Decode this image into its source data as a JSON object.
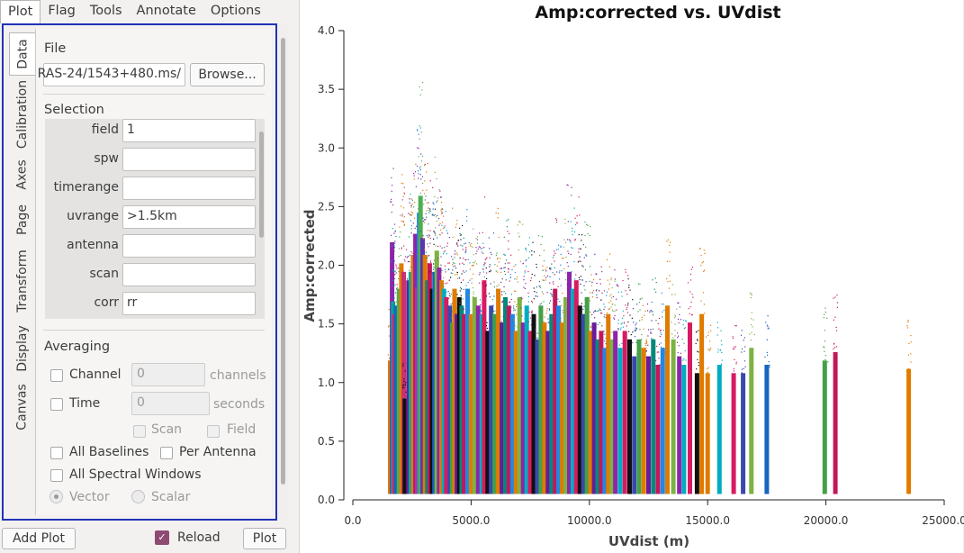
{
  "menu": {
    "plot": "Plot",
    "flag": "Flag",
    "tools": "Tools",
    "annotate": "Annotate",
    "options": "Options"
  },
  "tabs": {
    "data": "Data",
    "calibration": "Calibration",
    "axes": "Axes",
    "page": "Page",
    "transform": "Transform",
    "display": "Display",
    "canvas": "Canvas"
  },
  "file": {
    "header": "File",
    "path": "/RAS-24/1543+480.ms",
    "browse": "Browse..."
  },
  "selection": {
    "header": "Selection",
    "fields": [
      {
        "label": "field",
        "value": "1"
      },
      {
        "label": "spw",
        "value": ""
      },
      {
        "label": "timerange",
        "value": ""
      },
      {
        "label": "uvrange",
        "value": ">1.5km"
      },
      {
        "label": "antenna",
        "value": ""
      },
      {
        "label": "scan",
        "value": ""
      },
      {
        "label": "corr",
        "value": "rr"
      }
    ]
  },
  "averaging": {
    "header": "Averaging",
    "channel": "Channel",
    "channel_value": "0",
    "channel_unit": "channels",
    "time": "Time",
    "time_value": "0",
    "time_unit": "seconds",
    "scan": "Scan",
    "field": "Field",
    "all_baselines": "All Baselines",
    "per_antenna": "Per Antenna",
    "all_spw": "All Spectral Windows",
    "vector": "Vector",
    "scalar": "Scalar"
  },
  "footer": {
    "add_plot": "Add Plot",
    "reload": "Reload",
    "plot": "Plot"
  },
  "colors": {
    "tab_border": "#2232b8",
    "reload_check": "#8e4a73"
  },
  "chart_data": {
    "type": "scatter",
    "title": "Amp:corrected vs. UVdist",
    "xlabel": "UVdist (m)",
    "ylabel": "Amp:corrected",
    "xlim": [
      0,
      25000
    ],
    "ylim": [
      0,
      4.0
    ],
    "x_ticks": [
      "0.0",
      "5000.0",
      "10000.0",
      "15000.0",
      "20000.0",
      "25000.0"
    ],
    "y_ticks": [
      "0.0",
      "0.5",
      "1.0",
      "1.5",
      "2.0",
      "2.5",
      "3.0",
      "3.5",
      "4.0"
    ],
    "bands": [
      {
        "x": 1580,
        "ymax": 1.65,
        "color": "#e07b00"
      },
      {
        "x": 1660,
        "ymax": 3.05,
        "color": "#8e24aa"
      },
      {
        "x": 1700,
        "ymax": 2.35,
        "color": "#00a69c"
      },
      {
        "x": 1760,
        "ymax": 2.2,
        "color": "#e91e63"
      },
      {
        "x": 1830,
        "ymax": 2.3,
        "color": "#1565c0"
      },
      {
        "x": 1950,
        "ymax": 2.5,
        "color": "#4caf50"
      },
      {
        "x": 2050,
        "ymax": 2.8,
        "color": "#e07b00"
      },
      {
        "x": 2150,
        "ymax": 2.7,
        "color": "#c8326e"
      },
      {
        "x": 2200,
        "ymax": 1.2,
        "color": "#111111"
      },
      {
        "x": 2350,
        "ymax": 2.6,
        "color": "#6a1b9a"
      },
      {
        "x": 2450,
        "ymax": 2.7,
        "color": "#00a69c"
      },
      {
        "x": 2550,
        "ymax": 2.9,
        "color": "#e07b00"
      },
      {
        "x": 2650,
        "ymax": 3.15,
        "color": "#8e24aa"
      },
      {
        "x": 2720,
        "ymax": 2.5,
        "color": "#e91e63"
      },
      {
        "x": 2800,
        "ymax": 3.4,
        "color": "#1e88e5"
      },
      {
        "x": 2860,
        "ymax": 3.6,
        "color": "#4caf50"
      },
      {
        "x": 2950,
        "ymax": 3.1,
        "color": "#5e35b1"
      },
      {
        "x": 3050,
        "ymax": 2.9,
        "color": "#e07b00"
      },
      {
        "x": 3150,
        "ymax": 2.6,
        "color": "#00897b"
      },
      {
        "x": 3250,
        "ymax": 2.8,
        "color": "#c2185b"
      },
      {
        "x": 3350,
        "ymax": 2.5,
        "color": "#111111"
      },
      {
        "x": 3450,
        "ymax": 2.7,
        "color": "#1565c0"
      },
      {
        "x": 3550,
        "ymax": 2.95,
        "color": "#7cb342"
      },
      {
        "x": 3650,
        "ymax": 2.75,
        "color": "#8e24aa"
      },
      {
        "x": 3750,
        "ymax": 2.6,
        "color": "#e07b00"
      },
      {
        "x": 3850,
        "ymax": 2.5,
        "color": "#00acc1"
      },
      {
        "x": 3950,
        "ymax": 2.4,
        "color": "#d81b60"
      },
      {
        "x": 4100,
        "ymax": 2.3,
        "color": "#3949ab"
      },
      {
        "x": 4200,
        "ymax": 2.1,
        "color": "#43a047"
      },
      {
        "x": 4300,
        "ymax": 2.5,
        "color": "#e07b00"
      },
      {
        "x": 4400,
        "ymax": 2.2,
        "color": "#6a1b9a"
      },
      {
        "x": 4500,
        "ymax": 2.4,
        "color": "#111111"
      },
      {
        "x": 4600,
        "ymax": 2.3,
        "color": "#00897b"
      },
      {
        "x": 4700,
        "ymax": 2.2,
        "color": "#c2185b"
      },
      {
        "x": 4850,
        "ymax": 2.5,
        "color": "#1e88e5"
      },
      {
        "x": 5000,
        "ymax": 2.2,
        "color": "#e07b00"
      },
      {
        "x": 5150,
        "ymax": 2.4,
        "color": "#7cb342"
      },
      {
        "x": 5300,
        "ymax": 2.3,
        "color": "#8e24aa"
      },
      {
        "x": 5450,
        "ymax": 2.2,
        "color": "#00acc1"
      },
      {
        "x": 5550,
        "ymax": 2.6,
        "color": "#d81b60"
      },
      {
        "x": 5700,
        "ymax": 2.0,
        "color": "#111111"
      },
      {
        "x": 5850,
        "ymax": 2.3,
        "color": "#3949ab"
      },
      {
        "x": 6000,
        "ymax": 2.2,
        "color": "#43a047"
      },
      {
        "x": 6150,
        "ymax": 2.5,
        "color": "#e07b00"
      },
      {
        "x": 6300,
        "ymax": 2.1,
        "color": "#6a1b9a"
      },
      {
        "x": 6450,
        "ymax": 2.4,
        "color": "#00897b"
      },
      {
        "x": 6600,
        "ymax": 2.3,
        "color": "#c2185b"
      },
      {
        "x": 6750,
        "ymax": 2.2,
        "color": "#1e88e5"
      },
      {
        "x": 6900,
        "ymax": 2.0,
        "color": "#e07b00"
      },
      {
        "x": 7050,
        "ymax": 2.4,
        "color": "#7cb342"
      },
      {
        "x": 7200,
        "ymax": 2.1,
        "color": "#8e24aa"
      },
      {
        "x": 7350,
        "ymax": 2.3,
        "color": "#00acc1"
      },
      {
        "x": 7500,
        "ymax": 2.0,
        "color": "#d81b60"
      },
      {
        "x": 7650,
        "ymax": 2.2,
        "color": "#111111"
      },
      {
        "x": 7800,
        "ymax": 1.9,
        "color": "#3949ab"
      },
      {
        "x": 7950,
        "ymax": 2.3,
        "color": "#43a047"
      },
      {
        "x": 8100,
        "ymax": 2.1,
        "color": "#e07b00"
      },
      {
        "x": 8250,
        "ymax": 2.0,
        "color": "#6a1b9a"
      },
      {
        "x": 8400,
        "ymax": 2.2,
        "color": "#00897b"
      },
      {
        "x": 8550,
        "ymax": 2.5,
        "color": "#c2185b"
      },
      {
        "x": 8700,
        "ymax": 2.3,
        "color": "#1e88e5"
      },
      {
        "x": 8850,
        "ymax": 2.1,
        "color": "#e07b00"
      },
      {
        "x": 9000,
        "ymax": 2.4,
        "color": "#7cb342"
      },
      {
        "x": 9150,
        "ymax": 2.7,
        "color": "#8e24aa"
      },
      {
        "x": 9300,
        "ymax": 2.5,
        "color": "#00acc1"
      },
      {
        "x": 9450,
        "ymax": 2.6,
        "color": "#d81b60"
      },
      {
        "x": 9600,
        "ymax": 2.3,
        "color": "#111111"
      },
      {
        "x": 9750,
        "ymax": 2.2,
        "color": "#3949ab"
      },
      {
        "x": 9900,
        "ymax": 2.4,
        "color": "#43a047"
      },
      {
        "x": 10050,
        "ymax": 2.0,
        "color": "#e07b00"
      },
      {
        "x": 10200,
        "ymax": 2.1,
        "color": "#6a1b9a"
      },
      {
        "x": 10350,
        "ymax": 1.9,
        "color": "#00897b"
      },
      {
        "x": 10500,
        "ymax": 2.0,
        "color": "#c2185b"
      },
      {
        "x": 10650,
        "ymax": 1.8,
        "color": "#1e88e5"
      },
      {
        "x": 10800,
        "ymax": 2.2,
        "color": "#e07b00"
      },
      {
        "x": 10950,
        "ymax": 1.9,
        "color": "#7cb342"
      },
      {
        "x": 11100,
        "ymax": 2.0,
        "color": "#8e24aa"
      },
      {
        "x": 11300,
        "ymax": 1.8,
        "color": "#00acc1"
      },
      {
        "x": 11500,
        "ymax": 2.0,
        "color": "#d81b60"
      },
      {
        "x": 11700,
        "ymax": 1.9,
        "color": "#111111"
      },
      {
        "x": 11900,
        "ymax": 1.7,
        "color": "#3949ab"
      },
      {
        "x": 12100,
        "ymax": 1.9,
        "color": "#43a047"
      },
      {
        "x": 12300,
        "ymax": 1.8,
        "color": "#e07b00"
      },
      {
        "x": 12500,
        "ymax": 1.7,
        "color": "#6a1b9a"
      },
      {
        "x": 12700,
        "ymax": 1.9,
        "color": "#00897b"
      },
      {
        "x": 12900,
        "ymax": 1.6,
        "color": "#c2185b"
      },
      {
        "x": 13100,
        "ymax": 1.8,
        "color": "#1e88e5"
      },
      {
        "x": 13300,
        "ymax": 2.3,
        "color": "#e07b00"
      },
      {
        "x": 13550,
        "ymax": 1.9,
        "color": "#7cb342"
      },
      {
        "x": 13800,
        "ymax": 1.7,
        "color": "#8e24aa"
      },
      {
        "x": 14000,
        "ymax": 1.6,
        "color": "#00acc1"
      },
      {
        "x": 14250,
        "ymax": 2.1,
        "color": "#d81b60"
      },
      {
        "x": 14550,
        "ymax": 1.5,
        "color": "#111111"
      },
      {
        "x": 14750,
        "ymax": 2.2,
        "color": "#e07b00"
      },
      {
        "x": 15000,
        "ymax": 1.5,
        "color": "#e07b00"
      },
      {
        "x": 15500,
        "ymax": 1.6,
        "color": "#00acc1"
      },
      {
        "x": 16100,
        "ymax": 1.5,
        "color": "#d81b60"
      },
      {
        "x": 16500,
        "ymax": 1.5,
        "color": "#3949ab"
      },
      {
        "x": 16850,
        "ymax": 1.8,
        "color": "#7cb342"
      },
      {
        "x": 17500,
        "ymax": 1.6,
        "color": "#1565c0"
      },
      {
        "x": 19950,
        "ymax": 1.65,
        "color": "#43a047"
      },
      {
        "x": 20400,
        "ymax": 1.75,
        "color": "#c2185b"
      },
      {
        "x": 23500,
        "ymax": 1.55,
        "color": "#e07b00"
      }
    ]
  }
}
